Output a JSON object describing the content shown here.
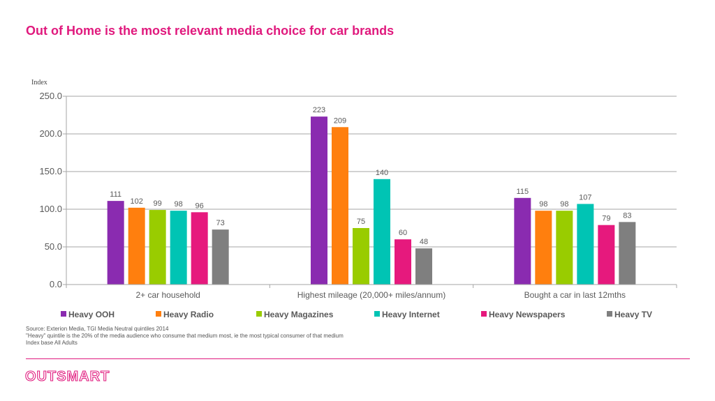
{
  "title": "Out of Home is the most relevant media choice for car brands",
  "chart_data": {
    "type": "bar",
    "ylabel": "Index",
    "ylim": [
      0,
      250
    ],
    "yticks": [
      0,
      50,
      100,
      150,
      200,
      250
    ],
    "ytick_labels": [
      "0.0",
      "50.0",
      "100.0",
      "150.0",
      "200.0",
      "250.0"
    ],
    "grid": true,
    "legend_position": "bottom",
    "categories": [
      "2+ car household",
      "Highest mileage (20,000+ miles/annum)",
      "Bought a car in last 12mths"
    ],
    "series": [
      {
        "name": "Heavy OOH",
        "color": "#8a2bb0",
        "values": [
          111,
          223,
          115
        ]
      },
      {
        "name": "Heavy Radio",
        "color": "#ff7f0e",
        "values": [
          102,
          209,
          98
        ]
      },
      {
        "name": "Heavy Magazines",
        "color": "#99cc00",
        "values": [
          99,
          75,
          98
        ]
      },
      {
        "name": "Heavy Internet",
        "color": "#00c4b4",
        "values": [
          98,
          140,
          107
        ]
      },
      {
        "name": "Heavy Newspapers",
        "color": "#e6197d",
        "values": [
          96,
          60,
          79
        ]
      },
      {
        "name": "Heavy TV",
        "color": "#7f7f7f",
        "values": [
          73,
          48,
          83
        ]
      }
    ]
  },
  "source": {
    "line1": "Source: Exterion Media, TGI Media Neutral quintiles 2014",
    "line2": "\"Heavy\" quintile is the 20% of the media audience who consume that medium most, ie the most typical consumer of that medium",
    "line3": "Index base All Adults"
  },
  "logo": "OUTSMART",
  "colors": {
    "accent": "#e0197d",
    "grid": "#a6a6a6"
  }
}
